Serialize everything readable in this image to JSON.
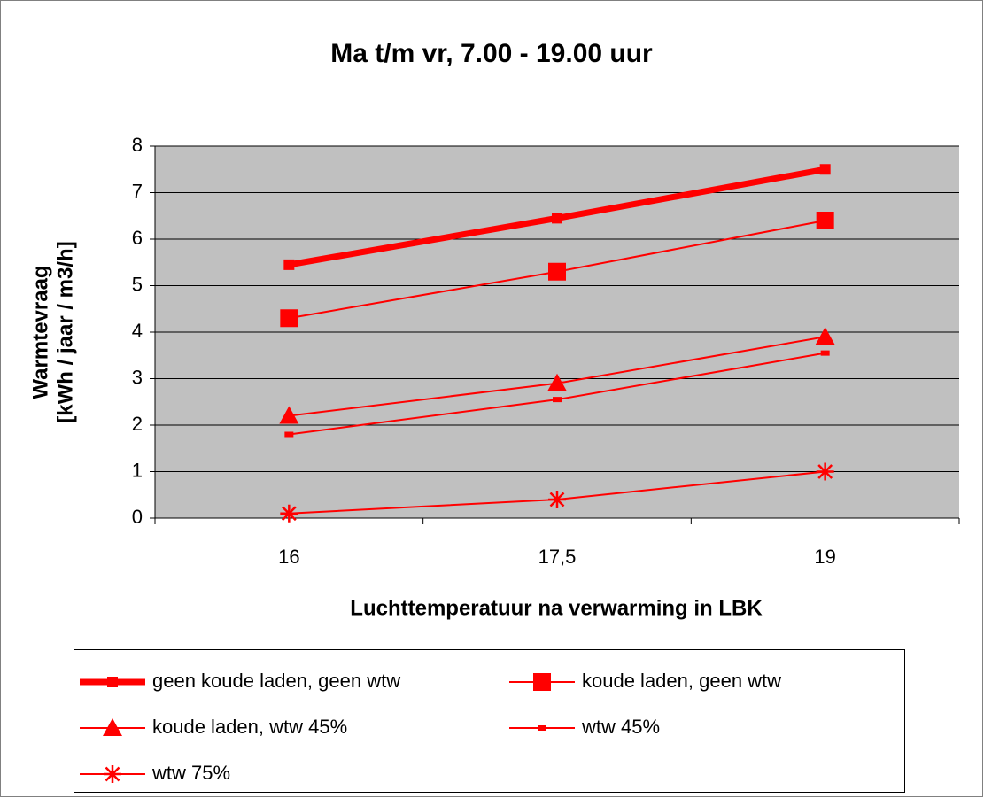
{
  "chart_data": {
    "type": "line",
    "title": "Ma t/m vr, 7.00 - 19.00 uur",
    "x_label": "Luchttemperatuur na verwarming in LBK",
    "y_label": [
      "Warmtevraag",
      "[kWh / jaar / m3/h]"
    ],
    "categories": [
      "16",
      "17,5",
      "19"
    ],
    "ylim": [
      0,
      8
    ],
    "yticks": [
      0,
      1,
      2,
      3,
      4,
      5,
      6,
      7,
      8
    ],
    "grid": true,
    "series": [
      {
        "name": "geen koude laden, geen wtw",
        "color": "#ff0000",
        "marker": "small-square",
        "width": 7,
        "values": [
          5.45,
          6.45,
          7.5
        ]
      },
      {
        "name": "koude laden, geen wtw",
        "color": "#ff0000",
        "marker": "square",
        "width": 2,
        "values": [
          4.3,
          5.3,
          6.4
        ]
      },
      {
        "name": "koude laden, wtw 45%",
        "color": "#ff0000",
        "marker": "triangle",
        "width": 2,
        "values": [
          2.2,
          2.9,
          3.9
        ]
      },
      {
        "name": "wtw 45%",
        "color": "#ff0000",
        "marker": "dash",
        "width": 2,
        "values": [
          1.8,
          2.55,
          3.55
        ]
      },
      {
        "name": "wtw 75%",
        "color": "#ff0000",
        "marker": "star",
        "width": 2,
        "values": [
          0.1,
          0.4,
          1.0
        ]
      }
    ]
  }
}
